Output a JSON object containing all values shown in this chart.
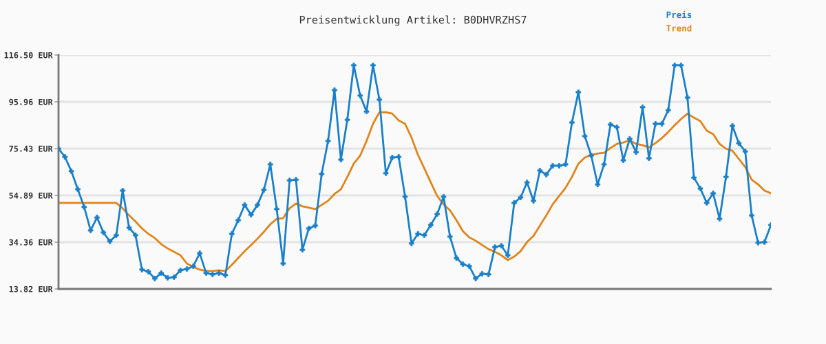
{
  "chart_data": {
    "type": "line",
    "title": "Preisentwicklung Artikel: B0DHVRZHS7",
    "categories": [
      null,
      null,
      null,
      null,
      null,
      null,
      null,
      null,
      null,
      null,
      null,
      null,
      null,
      null,
      null,
      null,
      null,
      null,
      null,
      null,
      null,
      null,
      null,
      null,
      null,
      null,
      null,
      null,
      null,
      null,
      null,
      null,
      null,
      null,
      null,
      null,
      null,
      null,
      null,
      null,
      null,
      null,
      null,
      null,
      null,
      null,
      null,
      null,
      null,
      null,
      null,
      null,
      null,
      null,
      null,
      null,
      null,
      null,
      null,
      null,
      null,
      null,
      null,
      null,
      null,
      null,
      null,
      null,
      null,
      null,
      null,
      null,
      null,
      null,
      null,
      null,
      null,
      null,
      null,
      null,
      null,
      null,
      null,
      null,
      null,
      null,
      null,
      null,
      null,
      null,
      null,
      null,
      null,
      null,
      null,
      null,
      null,
      null,
      null,
      null,
      null,
      null,
      null,
      null,
      null,
      null,
      null,
      null,
      null,
      null,
      null,
      null
    ],
    "series": [
      {
        "name": "Preis",
        "color": "#1a80c9",
        "marker": "cross",
        "values": [
          75.4,
          71.8,
          65.5,
          57.6,
          49.8,
          39.5,
          45.2,
          38.6,
          34.7,
          37.4,
          57.0,
          40.7,
          37.4,
          22.3,
          21.4,
          18.4,
          20.8,
          18.7,
          19.0,
          22.0,
          22.6,
          23.8,
          29.5,
          20.8,
          20.2,
          20.8,
          19.9,
          38.0,
          44.0,
          50.7,
          46.4,
          50.7,
          57.3,
          68.5,
          48.9,
          25.0,
          61.5,
          61.8,
          31.0,
          40.4,
          41.6,
          64.3,
          78.8,
          101.1,
          70.6,
          88.1,
          112.0,
          98.7,
          91.7,
          112.0,
          96.9,
          64.6,
          71.5,
          71.8,
          54.3,
          33.8,
          38.0,
          37.4,
          41.9,
          46.7,
          54.3,
          36.8,
          27.4,
          24.7,
          23.8,
          18.4,
          20.5,
          20.2,
          32.2,
          32.8,
          28.6,
          51.6,
          54.0,
          60.6,
          52.5,
          65.8,
          64.0,
          67.9,
          67.9,
          68.5,
          86.9,
          100.2,
          80.9,
          72.4,
          59.7,
          68.5,
          86.0,
          84.8,
          70.3,
          79.7,
          73.9,
          93.6,
          71.2,
          86.3,
          86.3,
          92.3,
          112.0,
          112.0,
          97.8,
          62.7,
          57.9,
          51.6,
          55.8,
          44.6,
          63.0,
          85.4,
          77.8,
          74.2,
          46.1,
          34.1,
          34.4,
          41.9
        ]
      },
      {
        "name": "Trend",
        "color": "#e0841a",
        "marker": "none",
        "values": [
          51.6,
          51.6,
          51.6,
          51.6,
          51.6,
          51.6,
          51.6,
          51.6,
          51.6,
          51.6,
          49.2,
          46.1,
          43.4,
          40.4,
          38.0,
          36.2,
          33.5,
          31.6,
          30.1,
          28.6,
          25.0,
          23.5,
          22.3,
          21.7,
          21.7,
          22.0,
          21.7,
          24.4,
          27.4,
          30.4,
          33.1,
          35.9,
          38.9,
          42.2,
          44.6,
          44.9,
          49.2,
          51.3,
          50.1,
          49.5,
          48.9,
          50.7,
          52.5,
          55.5,
          57.6,
          63.0,
          68.8,
          72.4,
          78.8,
          86.3,
          91.4,
          91.4,
          90.8,
          87.8,
          86.3,
          80.3,
          72.7,
          66.7,
          60.6,
          54.6,
          51.0,
          48.3,
          44.0,
          39.2,
          36.5,
          35.0,
          33.1,
          31.3,
          30.1,
          28.6,
          26.5,
          28.0,
          30.4,
          34.4,
          37.1,
          41.6,
          46.1,
          51.0,
          54.6,
          58.2,
          63.0,
          68.8,
          71.5,
          72.7,
          73.3,
          73.6,
          75.7,
          77.5,
          78.1,
          79.1,
          77.5,
          76.9,
          76.0,
          77.8,
          80.0,
          82.7,
          85.7,
          88.4,
          90.8,
          89.0,
          87.5,
          83.3,
          81.8,
          77.5,
          75.4,
          74.5,
          70.9,
          67.3,
          61.8,
          59.7,
          57.0,
          55.8
        ]
      }
    ],
    "ylim": [
      13.82,
      116.5
    ],
    "yticks": [
      {
        "value": 13.82,
        "label": "13.82 EUR"
      },
      {
        "value": 34.36,
        "label": "34.36 EUR"
      },
      {
        "value": 54.89,
        "label": "54.89 EUR"
      },
      {
        "value": 75.43,
        "label": "75.43 EUR"
      },
      {
        "value": 95.96,
        "label": "95.96 EUR"
      },
      {
        "value": 116.5,
        "label": "116.50 EUR"
      }
    ],
    "grid": "y",
    "legend": "top right",
    "tick_labels": "y",
    "line_style": "solid"
  }
}
